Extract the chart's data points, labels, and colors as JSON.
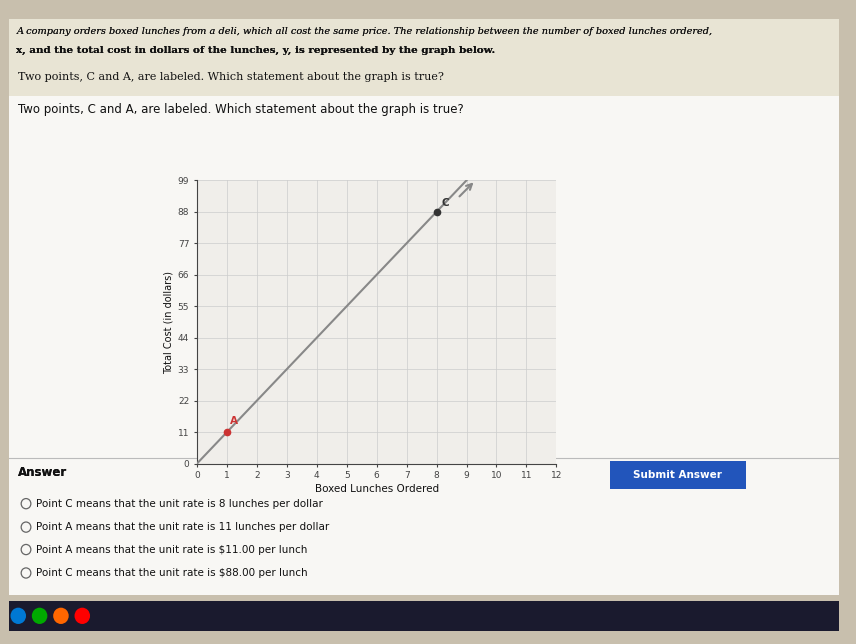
{
  "title_line1": "A company orders boxed lunches from a deli, which all cost the same price. The relationship between the number of boxed lunches ordered,",
  "title_line2": "x, and the total cost in dollars of the lunches, y, is represented by the graph below.",
  "subtitle": "Two points, C and A, are labeled. Which statement about the graph is true?",
  "xlabel": "Boxed Lunches Ordered",
  "ylabel": "Total Cost (in dollars)",
  "xlim": [
    0,
    12
  ],
  "ylim": [
    0,
    99
  ],
  "xticks": [
    0,
    1,
    2,
    3,
    4,
    5,
    6,
    7,
    8,
    9,
    10,
    11,
    12
  ],
  "yticks": [
    0,
    11,
    22,
    33,
    44,
    55,
    66,
    77,
    88,
    99
  ],
  "point_A": [
    1,
    11
  ],
  "point_C": [
    8,
    88
  ],
  "answer_label": "Answer",
  "submit_button_text": "Submit Answer",
  "options": [
    "Point C means that the unit rate is 8 lunches per dollar",
    "Point A means that the unit rate is 11 lunches per dollar",
    "Point A means that the unit rate is $11.00 per lunch",
    "Point C means that the unit rate is $88.00 per lunch"
  ],
  "bg_color": "#c8bfad",
  "screen_bg": "#e8e4dc",
  "content_bg": "#f5f3ee",
  "plot_bg_color": "#f0eeea",
  "line_color": "#888888",
  "point_A_color": "#cc3333",
  "point_C_color": "#333333",
  "grid_color": "#cccccc",
  "axis_color": "#444444",
  "text_color": "#111111",
  "button_color": "#2255bb",
  "button_text_color": "#ffffff",
  "taskbar_color": "#1a1a2e"
}
